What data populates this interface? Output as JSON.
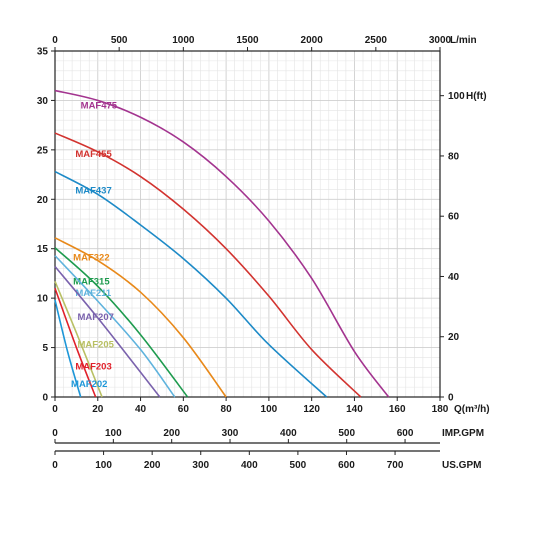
{
  "chart_data": {
    "type": "line",
    "title": "",
    "xlabel": "Q(m³/h)",
    "ylabel": "",
    "xlim": [
      0,
      180
    ],
    "ylim": [
      0,
      35
    ],
    "x_ticks": [
      0,
      20,
      40,
      60,
      80,
      100,
      120,
      140,
      160,
      180
    ],
    "y_ticks": [
      0,
      5,
      10,
      15,
      20,
      25,
      30,
      35
    ],
    "grid": true,
    "secondary_axes": {
      "top": {
        "label": "L/min",
        "ticks": [
          0,
          500,
          1000,
          1500,
          2000,
          2500,
          3000
        ]
      },
      "right": {
        "label": "H(ft)",
        "ticks": [
          0,
          20,
          40,
          60,
          80,
          100
        ]
      },
      "imp_gpm": {
        "label": "IMP.GPM",
        "ticks": [
          0,
          100,
          200,
          300,
          400,
          500,
          600
        ]
      },
      "us_gpm": {
        "label": "US.GPM",
        "ticks": [
          0,
          100,
          200,
          300,
          400,
          500,
          600,
          700
        ]
      }
    },
    "series": [
      {
        "name": "MAF475",
        "color": "#a3348f",
        "x": [
          0,
          20,
          40,
          60,
          80,
          100,
          120,
          140,
          156
        ],
        "y": [
          31,
          30,
          28.3,
          25.8,
          22.3,
          17.8,
          12,
          4.6,
          0
        ]
      },
      {
        "name": "MAF455",
        "color": "#d2332f",
        "x": [
          0,
          20,
          40,
          60,
          80,
          100,
          120,
          143
        ],
        "y": [
          26.7,
          24.8,
          22.3,
          19,
          15,
          10.2,
          4.8,
          0
        ]
      },
      {
        "name": "MAF437",
        "color": "#1d8ac7",
        "x": [
          0,
          20,
          40,
          60,
          80,
          100,
          127
        ],
        "y": [
          22.8,
          20.5,
          17.4,
          14,
          10,
          5.3,
          0
        ]
      },
      {
        "name": "MAF322",
        "color": "#e8891a",
        "x": [
          0,
          20,
          40,
          60,
          80
        ],
        "y": [
          16.1,
          13.8,
          10.6,
          6,
          0
        ]
      },
      {
        "name": "MAF315",
        "color": "#1e9b4e",
        "x": [
          0,
          20,
          40,
          62
        ],
        "y": [
          15.1,
          11.2,
          6.3,
          0
        ]
      },
      {
        "name": "MAF211",
        "color": "#5fb3dd",
        "x": [
          0,
          20,
          40,
          56
        ],
        "y": [
          14.3,
          9.7,
          4.8,
          0
        ]
      },
      {
        "name": "MAF207",
        "color": "#7a62ad",
        "x": [
          0,
          20,
          40,
          49
        ],
        "y": [
          13.2,
          8,
          2.5,
          0
        ]
      },
      {
        "name": "MAF205",
        "color": "#b9c064",
        "x": [
          0,
          10,
          22
        ],
        "y": [
          11.7,
          6.5,
          0
        ]
      },
      {
        "name": "MAF203",
        "color": "#e0202a",
        "x": [
          0,
          10,
          19
        ],
        "y": [
          11,
          5,
          0
        ]
      },
      {
        "name": "MAF202",
        "color": "#1e97d8",
        "x": [
          0,
          6,
          12
        ],
        "y": [
          9.8,
          4.5,
          0
        ]
      }
    ]
  }
}
